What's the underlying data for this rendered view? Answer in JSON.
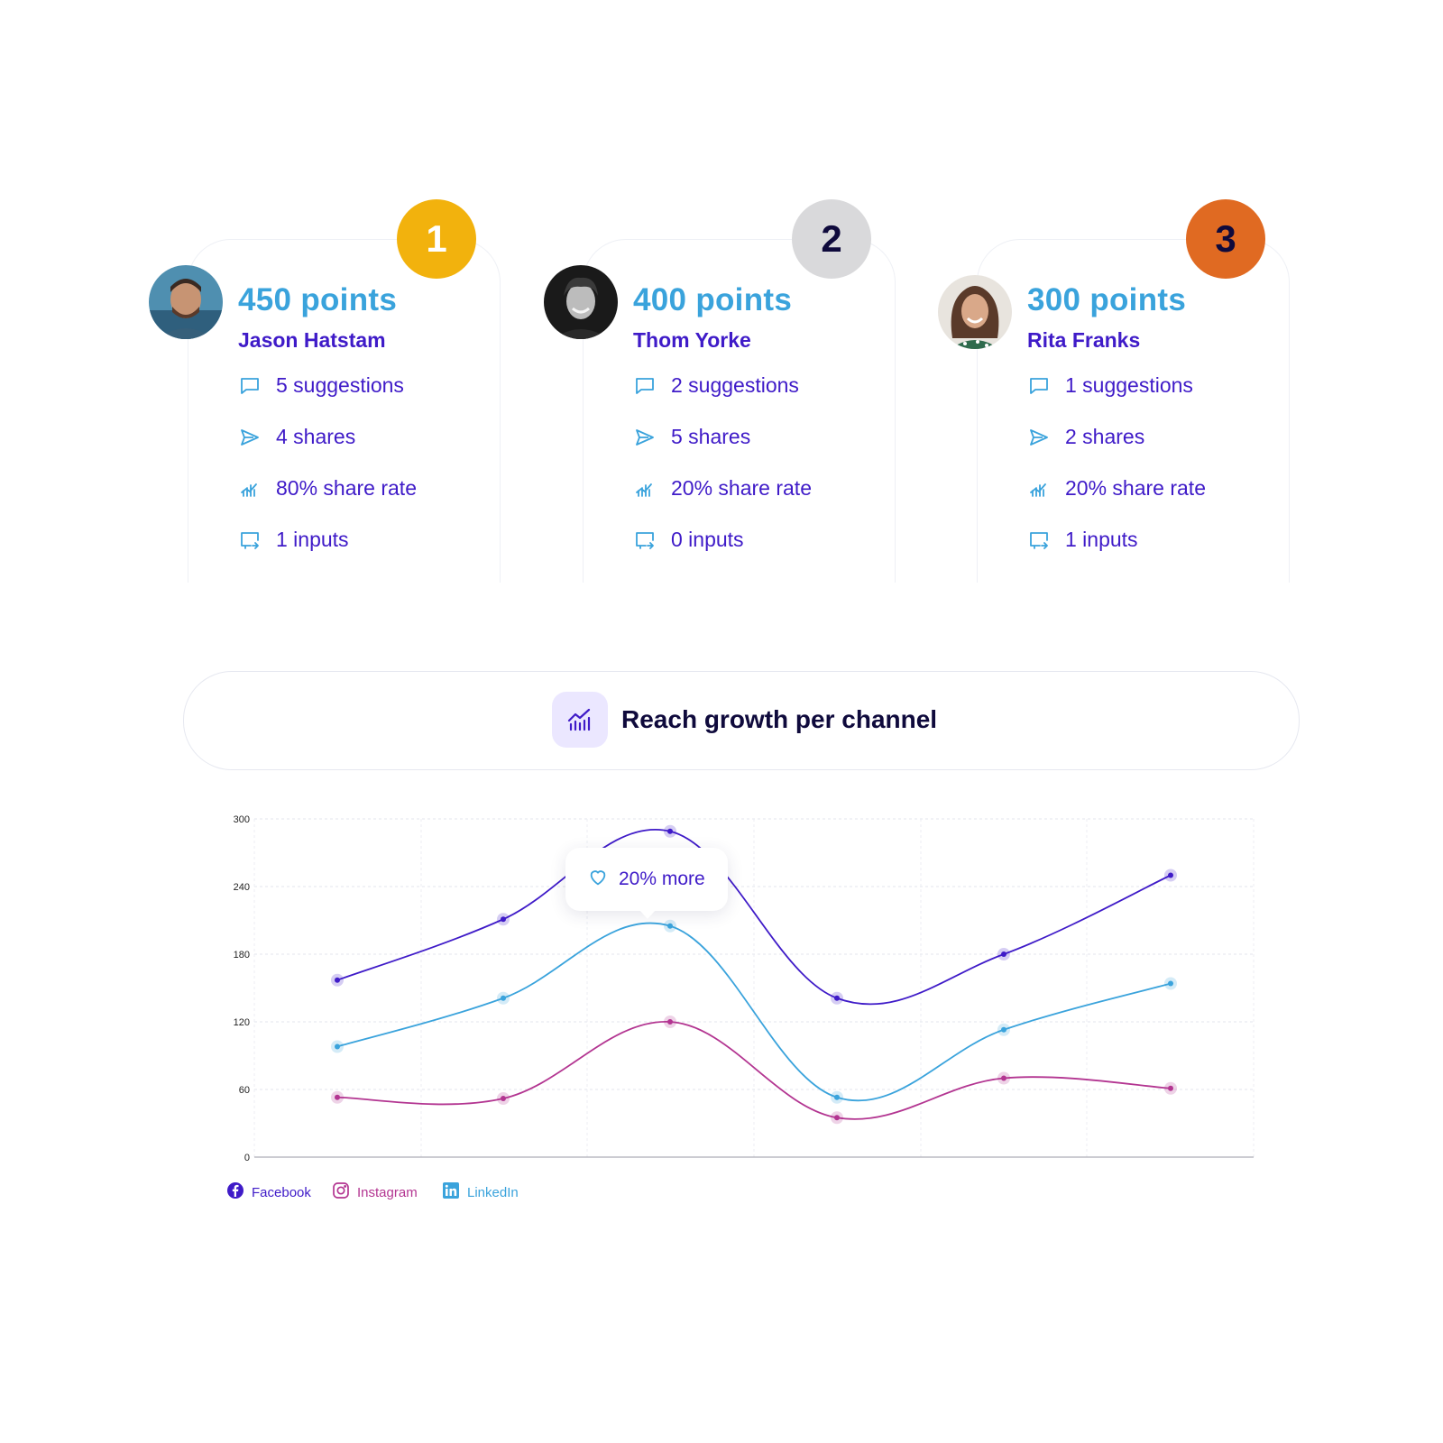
{
  "leaders": [
    {
      "rank": "1",
      "rank_color": "#f2b20d",
      "points": "450 points",
      "name": "Jason Hatstam",
      "stats": [
        "5 suggestions",
        "4 shares",
        "80% share rate",
        "1 inputs"
      ]
    },
    {
      "rank": "2",
      "rank_color": "#d9d9db",
      "points": "400 points",
      "name": "Thom Yorke",
      "stats": [
        "2 suggestions",
        "5 shares",
        "20% share rate",
        "0 inputs"
      ]
    },
    {
      "rank": "3",
      "rank_color": "#e06a22",
      "points": "300 points",
      "name": "Rita Franks",
      "stats": [
        "1 suggestions",
        "2 shares",
        "20% share rate",
        "1 inputs"
      ]
    }
  ],
  "stat_icons": [
    "chat-bubble-icon",
    "send-icon",
    "share-rate-icon",
    "inputs-icon"
  ],
  "chart_header": {
    "title": "Reach growth per channel",
    "icon": "chart-growth-icon"
  },
  "tooltip": {
    "text": "20% more",
    "icon": "heart-icon"
  },
  "colors": {
    "facebook": "#3f1bc8",
    "instagram": "#b33591",
    "linkedin": "#3aa3dc"
  },
  "chart_data": {
    "type": "line",
    "x": [
      1,
      2,
      3,
      4,
      5,
      6
    ],
    "ylim": [
      0,
      300
    ],
    "yticks": [
      0,
      60,
      120,
      180,
      240,
      300
    ],
    "grid": true,
    "legend_position": "bottom-left",
    "series": [
      {
        "name": "Facebook",
        "values": [
          157,
          211,
          289,
          141,
          180,
          250
        ]
      },
      {
        "name": "Instagram",
        "values": [
          53,
          52,
          120,
          35,
          70,
          61
        ]
      },
      {
        "name": "LinkedIn",
        "values": [
          98,
          141,
          205,
          53,
          113,
          154
        ]
      }
    ]
  }
}
